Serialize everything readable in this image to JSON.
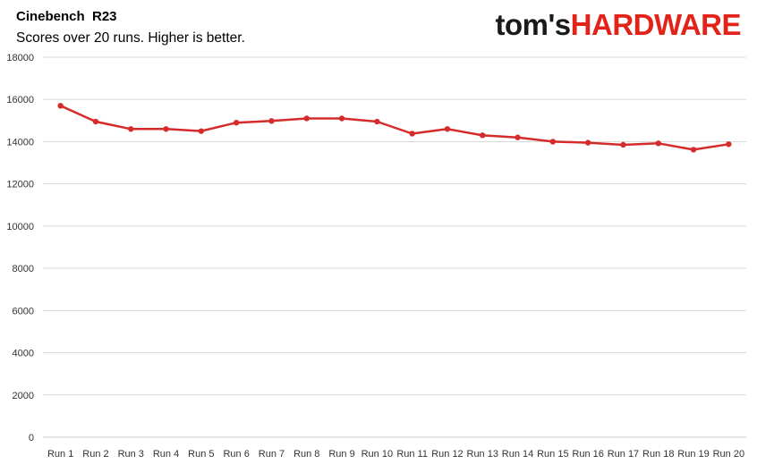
{
  "brand": {
    "part1": "tom's",
    "part2": "HARDWARE",
    "color_dark": "#1a1a1a",
    "color_red": "#e2231a"
  },
  "chart_data": {
    "type": "line",
    "title": "Cinebench  R23",
    "subtitle": "Scores over 20 runs. Higher is better.",
    "xlabel": "",
    "ylabel": "",
    "categories": [
      "Run 1",
      "Run 2",
      "Run 3",
      "Run 4",
      "Run 5",
      "Run 6",
      "Run 7",
      "Run 8",
      "Run 9",
      "Run 10",
      "Run 11",
      "Run 12",
      "Run 13",
      "Run 14",
      "Run 15",
      "Run 16",
      "Run 17",
      "Run 18",
      "Run 19",
      "Run 20"
    ],
    "series": [
      {
        "color": "#d52b2b",
        "values": [
          15700,
          14950,
          14600,
          14600,
          14500,
          14900,
          14980,
          15100,
          15100,
          14950,
          14380,
          14600,
          14300,
          14200,
          14000,
          13950,
          13850,
          13920,
          13620,
          13880
        ]
      }
    ],
    "ylim": [
      0,
      18000
    ],
    "yticks": [
      0,
      2000,
      4000,
      6000,
      8000,
      10000,
      12000,
      14000,
      16000,
      18000
    ],
    "grid": true,
    "legend": "none"
  }
}
